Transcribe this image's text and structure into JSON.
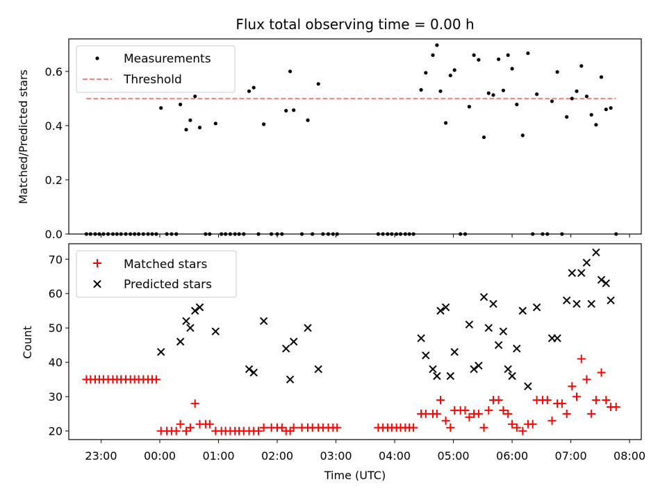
{
  "title": "Flux total observing time = 0.00 h",
  "xlabel": "Time (UTC)",
  "colors": {
    "matched": "#ff0000",
    "predicted": "#000000",
    "threshold": "#ff7f7f",
    "measurement": "#000000"
  },
  "chart_data": [
    {
      "type": "scatter",
      "title": "Flux total observing time = 0.00 h",
      "ylabel": "Matched/Predicted stars",
      "ylim": [
        0,
        0.72
      ],
      "yticks": [
        "0.0",
        "0.2",
        "0.4",
        "0.6"
      ],
      "xlim": [
        -1.55,
        8.2
      ],
      "legend": "top-left",
      "series": [
        {
          "name": "Measurements",
          "points": [
            [
              -1.25,
              0
            ],
            [
              -1.18,
              0
            ],
            [
              -1.1,
              0
            ],
            [
              -1.03,
              0
            ],
            [
              -0.96,
              0
            ],
            [
              -0.88,
              0
            ],
            [
              -0.8,
              0
            ],
            [
              -0.73,
              0
            ],
            [
              -0.66,
              0
            ],
            [
              -0.58,
              0
            ],
            [
              -0.5,
              0
            ],
            [
              -0.43,
              0
            ],
            [
              -0.36,
              0
            ],
            [
              -0.28,
              0
            ],
            [
              -0.2,
              0
            ],
            [
              -0.13,
              0
            ],
            [
              -0.06,
              0
            ],
            [
              0.02,
              0.465
            ],
            [
              0.12,
              0
            ],
            [
              0.2,
              0
            ],
            [
              0.28,
              0
            ],
            [
              0.35,
              0.478
            ],
            [
              0.45,
              0.385
            ],
            [
              0.52,
              0.42
            ],
            [
              0.6,
              0.508
            ],
            [
              0.68,
              0.393
            ],
            [
              0.78,
              0
            ],
            [
              0.85,
              0
            ],
            [
              0.95,
              0.408
            ],
            [
              1.05,
              0
            ],
            [
              1.12,
              0
            ],
            [
              1.2,
              0
            ],
            [
              1.28,
              0
            ],
            [
              1.35,
              0
            ],
            [
              1.43,
              0
            ],
            [
              1.52,
              0.527
            ],
            [
              1.6,
              0.54
            ],
            [
              1.68,
              0
            ],
            [
              1.77,
              0.405
            ],
            [
              1.9,
              0
            ],
            [
              2.0,
              0
            ],
            [
              2.08,
              0
            ],
            [
              2.15,
              0.455
            ],
            [
              2.22,
              0.6
            ],
            [
              2.28,
              0.457
            ],
            [
              2.42,
              0
            ],
            [
              2.52,
              0.42
            ],
            [
              2.6,
              0
            ],
            [
              2.7,
              0.554
            ],
            [
              2.78,
              0
            ],
            [
              2.87,
              0
            ],
            [
              2.95,
              0
            ],
            [
              3.02,
              0
            ],
            [
              3.72,
              0
            ],
            [
              3.8,
              0
            ],
            [
              3.88,
              0
            ],
            [
              3.95,
              0
            ],
            [
              4.03,
              0
            ],
            [
              4.1,
              0
            ],
            [
              4.18,
              0
            ],
            [
              4.25,
              0
            ],
            [
              4.32,
              0
            ],
            [
              4.45,
              0.532
            ],
            [
              4.53,
              0.595
            ],
            [
              4.65,
              0.66
            ],
            [
              4.72,
              0.697
            ],
            [
              4.78,
              0.527
            ],
            [
              4.87,
              0.41
            ],
            [
              4.95,
              0.585
            ],
            [
              5.02,
              0.605
            ],
            [
              5.12,
              0
            ],
            [
              5.2,
              0
            ],
            [
              5.27,
              0.47
            ],
            [
              5.35,
              0.66
            ],
            [
              5.43,
              0.643
            ],
            [
              5.52,
              0.357
            ],
            [
              5.6,
              0.52
            ],
            [
              5.68,
              0.513
            ],
            [
              5.77,
              0.645
            ],
            [
              5.85,
              0.53
            ],
            [
              5.93,
              0.66
            ],
            [
              6.0,
              0.61
            ],
            [
              6.08,
              0.478
            ],
            [
              6.18,
              0.364
            ],
            [
              6.27,
              0.667
            ],
            [
              6.35,
              0
            ],
            [
              6.42,
              0.516
            ],
            [
              6.52,
              0
            ],
            [
              6.6,
              0
            ],
            [
              6.68,
              0.49
            ],
            [
              6.77,
              0.598
            ],
            [
              6.85,
              0
            ],
            [
              6.93,
              0.432
            ],
            [
              7.02,
              0.5
            ],
            [
              7.1,
              0.527
            ],
            [
              7.18,
              0.62
            ],
            [
              7.27,
              0.508
            ],
            [
              7.35,
              0.44
            ],
            [
              7.43,
              0.403
            ],
            [
              7.52,
              0.579
            ],
            [
              7.6,
              0.46
            ],
            [
              7.68,
              0.465
            ],
            [
              7.77,
              0
            ]
          ]
        },
        {
          "name": "Threshold",
          "style": "dashed",
          "x": [
            -1.25,
            7.77
          ],
          "y": [
            0.5,
            0.5
          ]
        }
      ]
    },
    {
      "type": "scatter",
      "ylabel": "Count",
      "ylim": [
        17.5,
        74.5
      ],
      "yticks": [
        "20",
        "30",
        "40",
        "50",
        "60",
        "70"
      ],
      "xlim": [
        -1.55,
        8.2
      ],
      "xticks": [
        {
          "value": -1,
          "label": "23:00"
        },
        {
          "value": 0,
          "label": "00:00"
        },
        {
          "value": 1,
          "label": "01:00"
        },
        {
          "value": 2,
          "label": "02:00"
        },
        {
          "value": 3,
          "label": "03:00"
        },
        {
          "value": 4,
          "label": "04:00"
        },
        {
          "value": 5,
          "label": "05:00"
        },
        {
          "value": 6,
          "label": "06:00"
        },
        {
          "value": 7,
          "label": "07:00"
        },
        {
          "value": 8,
          "label": "08:00"
        }
      ],
      "legend": "top-left",
      "series": [
        {
          "name": "Matched stars",
          "marker": "plus",
          "points": [
            [
              -1.25,
              35
            ],
            [
              -1.18,
              35
            ],
            [
              -1.1,
              35
            ],
            [
              -1.03,
              35
            ],
            [
              -0.96,
              35
            ],
            [
              -0.88,
              35
            ],
            [
              -0.8,
              35
            ],
            [
              -0.73,
              35
            ],
            [
              -0.66,
              35
            ],
            [
              -0.58,
              35
            ],
            [
              -0.5,
              35
            ],
            [
              -0.43,
              35
            ],
            [
              -0.36,
              35
            ],
            [
              -0.28,
              35
            ],
            [
              -0.2,
              35
            ],
            [
              -0.13,
              35
            ],
            [
              -0.06,
              35
            ],
            [
              0.02,
              20
            ],
            [
              0.12,
              20
            ],
            [
              0.2,
              20
            ],
            [
              0.28,
              20
            ],
            [
              0.35,
              22
            ],
            [
              0.45,
              20
            ],
            [
              0.52,
              21
            ],
            [
              0.6,
              28
            ],
            [
              0.68,
              22
            ],
            [
              0.78,
              22
            ],
            [
              0.85,
              22
            ],
            [
              0.95,
              20
            ],
            [
              1.05,
              20
            ],
            [
              1.12,
              20
            ],
            [
              1.2,
              20
            ],
            [
              1.28,
              20
            ],
            [
              1.35,
              20
            ],
            [
              1.43,
              20
            ],
            [
              1.52,
              20
            ],
            [
              1.6,
              20
            ],
            [
              1.68,
              20
            ],
            [
              1.77,
              21
            ],
            [
              1.9,
              21
            ],
            [
              2.0,
              21
            ],
            [
              2.08,
              21
            ],
            [
              2.15,
              20
            ],
            [
              2.22,
              20
            ],
            [
              2.28,
              21
            ],
            [
              2.42,
              21
            ],
            [
              2.52,
              21
            ],
            [
              2.6,
              21
            ],
            [
              2.7,
              21
            ],
            [
              2.78,
              21
            ],
            [
              2.87,
              21
            ],
            [
              2.95,
              21
            ],
            [
              3.02,
              21
            ],
            [
              3.72,
              21
            ],
            [
              3.8,
              21
            ],
            [
              3.88,
              21
            ],
            [
              3.95,
              21
            ],
            [
              4.03,
              21
            ],
            [
              4.1,
              21
            ],
            [
              4.18,
              21
            ],
            [
              4.25,
              21
            ],
            [
              4.32,
              21
            ],
            [
              4.45,
              25
            ],
            [
              4.53,
              25
            ],
            [
              4.65,
              25
            ],
            [
              4.72,
              25
            ],
            [
              4.78,
              29
            ],
            [
              4.87,
              23
            ],
            [
              4.95,
              21
            ],
            [
              5.02,
              26
            ],
            [
              5.12,
              26
            ],
            [
              5.2,
              26
            ],
            [
              5.27,
              24
            ],
            [
              5.35,
              25
            ],
            [
              5.43,
              25
            ],
            [
              5.52,
              21
            ],
            [
              5.6,
              26
            ],
            [
              5.68,
              29
            ],
            [
              5.77,
              29
            ],
            [
              5.85,
              26
            ],
            [
              5.93,
              25
            ],
            [
              6.0,
              22
            ],
            [
              6.08,
              21
            ],
            [
              6.18,
              20
            ],
            [
              6.27,
              22
            ],
            [
              6.35,
              22
            ],
            [
              6.42,
              29
            ],
            [
              6.52,
              29
            ],
            [
              6.6,
              29
            ],
            [
              6.68,
              23
            ],
            [
              6.77,
              28
            ],
            [
              6.85,
              28
            ],
            [
              6.93,
              25
            ],
            [
              7.02,
              33
            ],
            [
              7.1,
              30
            ],
            [
              7.18,
              41
            ],
            [
              7.27,
              35
            ],
            [
              7.35,
              25
            ],
            [
              7.43,
              29
            ],
            [
              7.52,
              37
            ],
            [
              7.6,
              29
            ],
            [
              7.68,
              27
            ],
            [
              7.77,
              27
            ]
          ]
        },
        {
          "name": "Predicted stars",
          "marker": "x",
          "points": [
            [
              0.02,
              43
            ],
            [
              0.35,
              46
            ],
            [
              0.45,
              52
            ],
            [
              0.52,
              50
            ],
            [
              0.6,
              55
            ],
            [
              0.68,
              56
            ],
            [
              0.95,
              49
            ],
            [
              1.52,
              38
            ],
            [
              1.6,
              37
            ],
            [
              1.77,
              52
            ],
            [
              2.15,
              44
            ],
            [
              2.22,
              35
            ],
            [
              2.28,
              46
            ],
            [
              2.52,
              50
            ],
            [
              2.7,
              38
            ],
            [
              4.45,
              47
            ],
            [
              4.53,
              42
            ],
            [
              4.65,
              38
            ],
            [
              4.72,
              36
            ],
            [
              4.78,
              55
            ],
            [
              4.87,
              56
            ],
            [
              4.95,
              36
            ],
            [
              5.02,
              43
            ],
            [
              5.27,
              51
            ],
            [
              5.35,
              38
            ],
            [
              5.43,
              39
            ],
            [
              5.52,
              59
            ],
            [
              5.6,
              50
            ],
            [
              5.68,
              57
            ],
            [
              5.77,
              45
            ],
            [
              5.85,
              49
            ],
            [
              5.93,
              38
            ],
            [
              6.0,
              36
            ],
            [
              6.08,
              44
            ],
            [
              6.18,
              55
            ],
            [
              6.27,
              33
            ],
            [
              6.42,
              56
            ],
            [
              6.68,
              47
            ],
            [
              6.77,
              47
            ],
            [
              6.93,
              58
            ],
            [
              7.02,
              66
            ],
            [
              7.1,
              57
            ],
            [
              7.18,
              66
            ],
            [
              7.27,
              69
            ],
            [
              7.35,
              57
            ],
            [
              7.43,
              72
            ],
            [
              7.52,
              64
            ],
            [
              7.6,
              63
            ],
            [
              7.68,
              58
            ]
          ]
        }
      ]
    }
  ]
}
